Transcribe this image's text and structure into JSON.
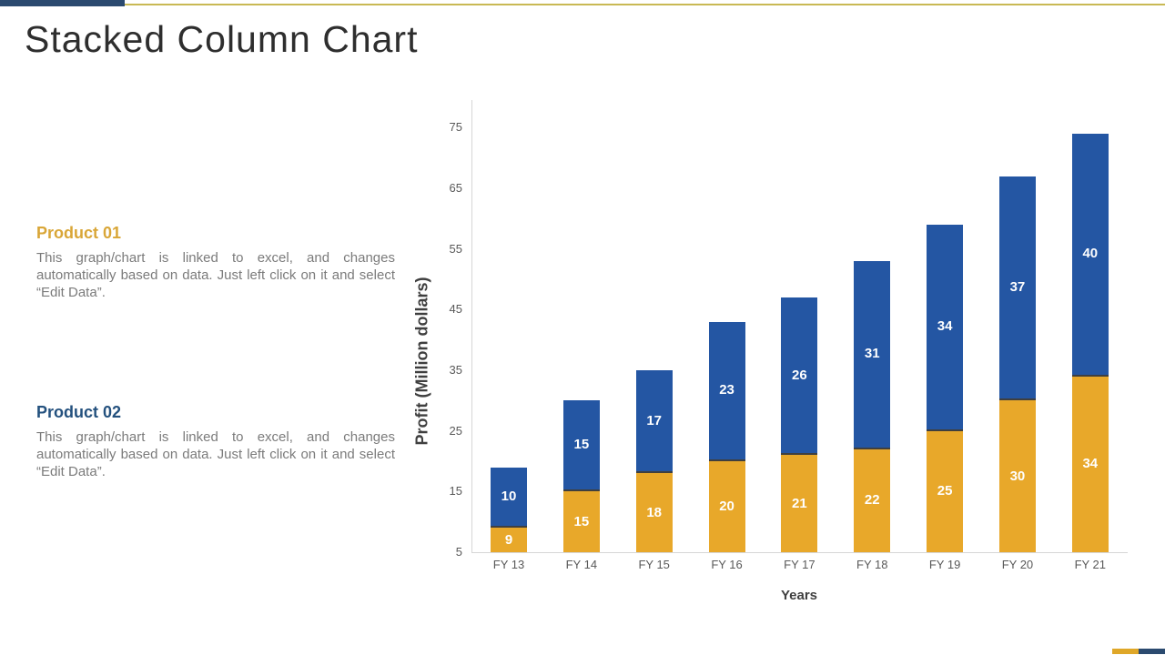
{
  "page": {
    "title": "Stacked Column Chart"
  },
  "accents": {
    "top_navy_bar": "#2B4A6F",
    "top_gold_line": "#C9B954",
    "bottom_gold": "#DFA728",
    "bottom_navy": "#2B4A6F"
  },
  "products": [
    {
      "name": "Product 01",
      "color": "#D9A637",
      "description": "This graph/chart is linked to excel, and changes automatically based on data. Just left click on it and select “Edit Data”."
    },
    {
      "name": "Product 02",
      "color": "#24517E",
      "description": "This graph/chart is linked to excel, and changes automatically based on data. Just left click on it and select “Edit Data”."
    }
  ],
  "chart_data": {
    "type": "bar",
    "stacked": true,
    "title": "",
    "xlabel": "Years",
    "ylabel": "Profit (Million dollars)",
    "categories": [
      "FY 13",
      "FY 14",
      "FY 15",
      "FY 16",
      "FY 17",
      "FY 18",
      "FY 19",
      "FY 20",
      "FY 21"
    ],
    "series": [
      {
        "name": "Product 01",
        "color": "#E8A82A",
        "values": [
          9,
          15,
          18,
          20,
          21,
          22,
          25,
          30,
          34
        ]
      },
      {
        "name": "Product 02",
        "color": "#2456A3",
        "values": [
          10,
          15,
          17,
          23,
          26,
          31,
          34,
          37,
          40
        ]
      }
    ],
    "stack_totals": [
      19,
      30,
      35,
      43,
      47,
      53,
      59,
      67,
      74
    ],
    "y_ticks": [
      5,
      15,
      25,
      35,
      45,
      55,
      65,
      75
    ],
    "ylim": [
      5,
      79
    ],
    "baseline": 5,
    "grid": false,
    "legend_position": "none",
    "label_color": "#FFFFFF",
    "segment_divider_color": "#3F3F3F",
    "axis_line_color": "#D6D6D6",
    "tick_text_color": "#595959",
    "axis_title_color": "#3F3F3F"
  }
}
